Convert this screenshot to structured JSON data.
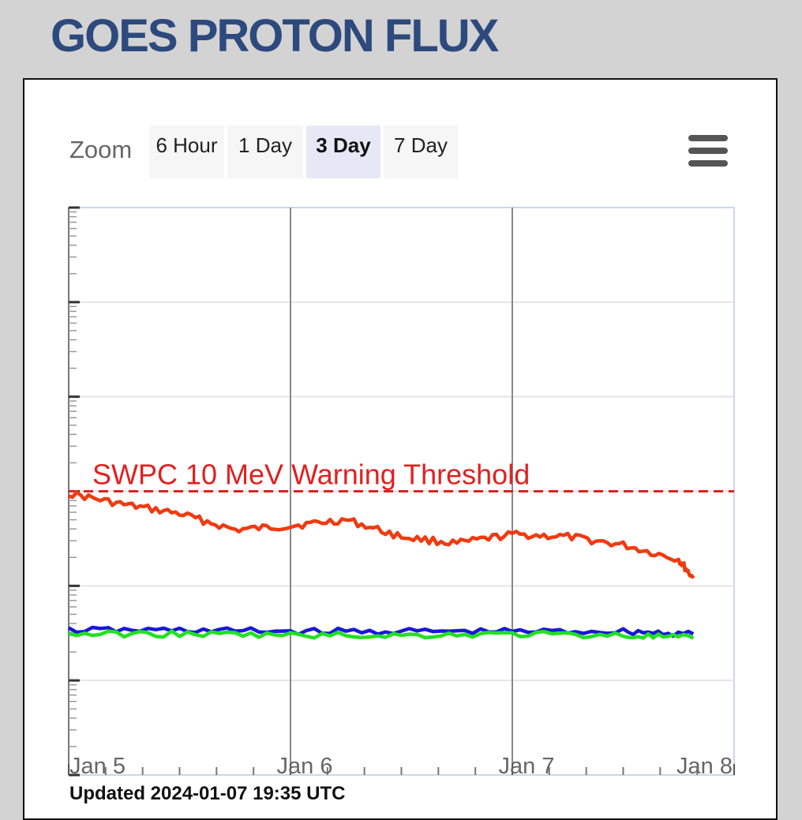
{
  "header": {
    "title": "GOES PROTON FLUX"
  },
  "zoom": {
    "label": "Zoom",
    "buttons": [
      "6 Hour",
      "1 Day",
      "3 Day",
      "7 Day"
    ],
    "active": "3 Day"
  },
  "menu": {
    "icon": "hamburger-menu-icon"
  },
  "footer": {
    "updated": "Updated 2024-01-07 19:35 UTC"
  },
  "colors": {
    "title": "#2d4a7e",
    "threshold": "#e02020",
    "red_series": "#f03a10",
    "blue_series": "#1818d8",
    "green_series": "#22e022"
  },
  "chart_data": {
    "type": "line",
    "x_tick_labels": [
      "Jan 5",
      "Jan 6",
      "Jan 7",
      "Jan 8"
    ],
    "xlim": [
      "2024-01-05 00:00",
      "2024-01-08 00:00"
    ],
    "y_scale": "log",
    "ylim": [
      0.01,
      10000
    ],
    "y_tick_labels_visible": false,
    "grid": true,
    "annotations": [
      {
        "text": "SWPC 10 MeV Warning Threshold",
        "y": 10,
        "style": "dashed",
        "color": "#e02020"
      }
    ],
    "series": [
      {
        "color": "#f03a10",
        "x": [
          "2024-01-05 00:00",
          "2024-01-05 06:00",
          "2024-01-05 12:00",
          "2024-01-05 18:00",
          "2024-01-06 00:00",
          "2024-01-06 06:00",
          "2024-01-06 12:00",
          "2024-01-06 18:00",
          "2024-01-07 00:00",
          "2024-01-07 06:00",
          "2024-01-07 12:00",
          "2024-01-07 18:00",
          "2024-01-07 19:35"
        ],
        "values": [
          9.5,
          7.2,
          5.8,
          3.9,
          4.3,
          5.0,
          3.3,
          2.8,
          3.5,
          3.3,
          2.7,
          1.9,
          1.2
        ]
      },
      {
        "color": "#1818d8",
        "x": [
          "2024-01-05 00:00",
          "2024-01-05 12:00",
          "2024-01-06 00:00",
          "2024-01-06 12:00",
          "2024-01-07 00:00",
          "2024-01-07 12:00",
          "2024-01-07 19:35"
        ],
        "values": [
          0.34,
          0.34,
          0.33,
          0.33,
          0.33,
          0.33,
          0.31
        ]
      },
      {
        "color": "#22e022",
        "x": [
          "2024-01-05 00:00",
          "2024-01-05 12:00",
          "2024-01-06 00:00",
          "2024-01-06 12:00",
          "2024-01-07 00:00",
          "2024-01-07 12:00",
          "2024-01-07 19:35"
        ],
        "values": [
          0.31,
          0.31,
          0.3,
          0.3,
          0.31,
          0.3,
          0.28
        ]
      }
    ]
  }
}
